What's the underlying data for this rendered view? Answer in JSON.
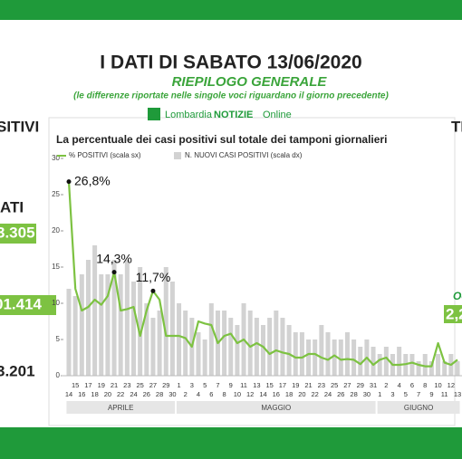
{
  "header": {
    "title": "I DATI DI SABATO 13/06/2020",
    "subtitle": "RIEPILOGO GENERALE",
    "note": "(le differenze riportate nelle singole voci riguardano il giorno precedente)",
    "logo": [
      "Lombardia",
      "NOTIZIE",
      "Online"
    ]
  },
  "left_panel": [
    "SITIVI",
    "ATI",
    "3.305",
    "01.414",
    "3.201"
  ],
  "right_panel": [
    "TI",
    "Oc",
    "2,2"
  ],
  "chart_data": {
    "type": "bar_line",
    "title": "La percentuale dei casi positivi sul totale dei tamponi giornalieri",
    "categories": [
      "14",
      "15",
      "16",
      "17",
      "18",
      "19",
      "20",
      "21",
      "22",
      "23",
      "24",
      "25",
      "26",
      "27",
      "28",
      "29",
      "30",
      "1",
      "2",
      "3",
      "4",
      "5",
      "6",
      "7",
      "8",
      "9",
      "10",
      "11",
      "12",
      "13",
      "14",
      "15",
      "16",
      "17",
      "18",
      "19",
      "20",
      "21",
      "22",
      "23",
      "24",
      "25",
      "26",
      "27",
      "28",
      "29",
      "30",
      "31",
      "1",
      "2",
      "3",
      "4",
      "5",
      "6",
      "7",
      "8",
      "9",
      "10",
      "11",
      "12",
      "13"
    ],
    "months": [
      "APRILE",
      "MAGGIO",
      "GIUGNO"
    ],
    "series": [
      {
        "name": "N. NUOVI CASI POSITIVI (scala dx)",
        "color": "#d2d2d2",
        "kind": "bar",
        "values": [
          12,
          11,
          14,
          16,
          18,
          14,
          14,
          16,
          14,
          16,
          13,
          15,
          10,
          8,
          9,
          15,
          13,
          10,
          9,
          8,
          6,
          5,
          10,
          9,
          9,
          8,
          7,
          10,
          9,
          8,
          7,
          8,
          9,
          8,
          7,
          6,
          6,
          5,
          5,
          7,
          6,
          5,
          5,
          6,
          5,
          4,
          5,
          4,
          3,
          4,
          3,
          4,
          3,
          3,
          2,
          3,
          2,
          3,
          2,
          3,
          2
        ]
      },
      {
        "name": "% POSITIVI (scala sx)",
        "color": "#7dc242",
        "kind": "line",
        "values": [
          26.8,
          12,
          9,
          9.5,
          10.5,
          9.8,
          11,
          14.3,
          9,
          9.2,
          9.5,
          5.5,
          9,
          11.7,
          10.5,
          5.5,
          5.5,
          5.5,
          5.2,
          4,
          7.5,
          7.2,
          7,
          4.5,
          5.5,
          5.8,
          4.5,
          5,
          4,
          4.5,
          4,
          3,
          3.5,
          3.2,
          3,
          2.5,
          2.5,
          3,
          3,
          2.5,
          2.2,
          2.8,
          2.2,
          2.3,
          2.2,
          1.6,
          2.5,
          1.5,
          2.2,
          2.5,
          1.5,
          1.5,
          1.6,
          1.8,
          1.5,
          1.3,
          1.3,
          4.5,
          1.8,
          1.5,
          2.2
        ],
        "value_labels": [
          "26,8%",
          null,
          null,
          null,
          null,
          null,
          null,
          "14,3%",
          null,
          null,
          null,
          null,
          null,
          "11,7%",
          null,
          null,
          null,
          null,
          null,
          null,
          null,
          null,
          null,
          null,
          null,
          null,
          null,
          null,
          null,
          null,
          null,
          null,
          null,
          null,
          null,
          null,
          null,
          null,
          null,
          null,
          null,
          null,
          null,
          null,
          null,
          null,
          null,
          null,
          null,
          null,
          null,
          null,
          null,
          null,
          null,
          null,
          null,
          null,
          null,
          null,
          null
        ]
      }
    ],
    "ylim": [
      0,
      30
    ],
    "yticks": [
      0,
      5,
      10,
      15,
      20,
      25,
      30
    ]
  }
}
